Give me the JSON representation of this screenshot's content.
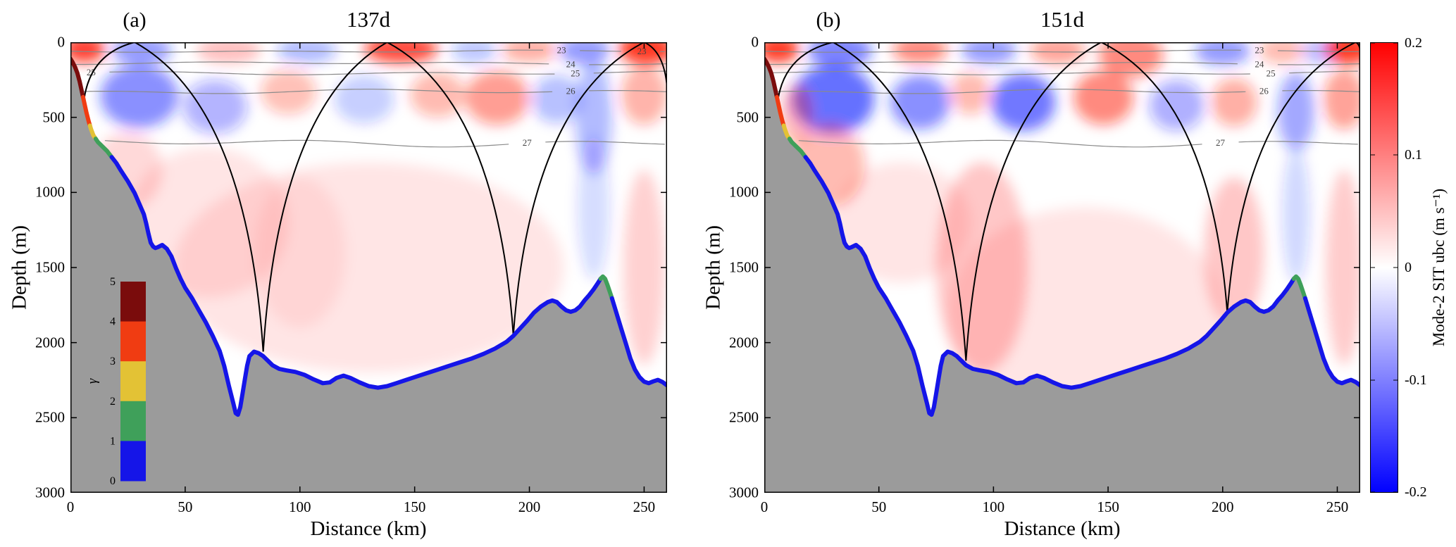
{
  "figure": {
    "background": "#ffffff",
    "field_colors": {
      "positive": "#ff1400",
      "negative": "#1122ff"
    },
    "bathymetry_fill": "#9b9b9b",
    "ray_color": "#000000",
    "contour_color": "#8a8a8a"
  },
  "colorbar": {
    "label": "Mode-2 SIT ubc (m s⁻¹)",
    "tick_labels": [
      "0.2",
      "0.1",
      "0",
      "-0.1",
      "-0.2"
    ],
    "tick_values": [
      0.2,
      0.1,
      0,
      -0.1,
      -0.2
    ],
    "min": -0.2,
    "max": 0.2,
    "colors_top_to_bottom": [
      "#ff0000",
      "#ffffff",
      "#0000ff"
    ]
  },
  "gamma_legend": {
    "label": "γ",
    "tick_labels": [
      "5",
      "4",
      "3",
      "2",
      "1",
      "0"
    ],
    "tick_values": [
      5,
      4,
      3,
      2,
      1,
      0
    ],
    "colors_top_to_bottom": [
      "#7a0c0c",
      "#f03c12",
      "#e3c235",
      "#3fa05a",
      "#1515e8"
    ]
  },
  "bathymetry": {
    "profile": [
      [
        0,
        110
      ],
      [
        1,
        135
      ],
      [
        2,
        165
      ],
      [
        3,
        205
      ],
      [
        4,
        260
      ],
      [
        5,
        330
      ],
      [
        6,
        400
      ],
      [
        7,
        470
      ],
      [
        8,
        530
      ],
      [
        9,
        580
      ],
      [
        10,
        620
      ],
      [
        12,
        665
      ],
      [
        14,
        695
      ],
      [
        16,
        725
      ],
      [
        18,
        765
      ],
      [
        20,
        805
      ],
      [
        22,
        855
      ],
      [
        25,
        925
      ],
      [
        28,
        1005
      ],
      [
        30,
        1075
      ],
      [
        32,
        1145
      ],
      [
        33,
        1205
      ],
      [
        34,
        1275
      ],
      [
        35,
        1335
      ],
      [
        36,
        1360
      ],
      [
        37,
        1370
      ],
      [
        38,
        1365
      ],
      [
        40,
        1350
      ],
      [
        42,
        1375
      ],
      [
        44,
        1425
      ],
      [
        46,
        1505
      ],
      [
        48,
        1575
      ],
      [
        50,
        1635
      ],
      [
        53,
        1705
      ],
      [
        56,
        1785
      ],
      [
        59,
        1865
      ],
      [
        62,
        1955
      ],
      [
        65,
        2055
      ],
      [
        67,
        2155
      ],
      [
        69,
        2285
      ],
      [
        71,
        2405
      ],
      [
        72,
        2470
      ],
      [
        73,
        2480
      ],
      [
        74,
        2430
      ],
      [
        75,
        2340
      ],
      [
        76,
        2245
      ],
      [
        77,
        2155
      ],
      [
        78,
        2090
      ],
      [
        80,
        2060
      ],
      [
        82,
        2070
      ],
      [
        84,
        2090
      ],
      [
        86,
        2120
      ],
      [
        88,
        2150
      ],
      [
        91,
        2175
      ],
      [
        94,
        2185
      ],
      [
        98,
        2195
      ],
      [
        102,
        2215
      ],
      [
        106,
        2245
      ],
      [
        110,
        2270
      ],
      [
        113,
        2265
      ],
      [
        116,
        2235
      ],
      [
        119,
        2220
      ],
      [
        122,
        2235
      ],
      [
        126,
        2265
      ],
      [
        130,
        2290
      ],
      [
        134,
        2300
      ],
      [
        138,
        2290
      ],
      [
        142,
        2270
      ],
      [
        146,
        2250
      ],
      [
        150,
        2230
      ],
      [
        155,
        2205
      ],
      [
        160,
        2180
      ],
      [
        165,
        2155
      ],
      [
        170,
        2130
      ],
      [
        175,
        2105
      ],
      [
        180,
        2075
      ],
      [
        185,
        2040
      ],
      [
        190,
        1995
      ],
      [
        193,
        1955
      ],
      [
        196,
        1905
      ],
      [
        199,
        1855
      ],
      [
        202,
        1800
      ],
      [
        205,
        1760
      ],
      [
        208,
        1730
      ],
      [
        210,
        1720
      ],
      [
        212,
        1730
      ],
      [
        214,
        1760
      ],
      [
        216,
        1785
      ],
      [
        218,
        1795
      ],
      [
        220,
        1785
      ],
      [
        222,
        1760
      ],
      [
        224,
        1720
      ],
      [
        226,
        1685
      ],
      [
        228,
        1645
      ],
      [
        230,
        1600
      ],
      [
        231,
        1575
      ],
      [
        232,
        1560
      ],
      [
        233,
        1575
      ],
      [
        234,
        1615
      ],
      [
        236,
        1705
      ],
      [
        238,
        1805
      ],
      [
        240,
        1905
      ],
      [
        242,
        2005
      ],
      [
        244,
        2105
      ],
      [
        246,
        2180
      ],
      [
        248,
        2230
      ],
      [
        250,
        2260
      ],
      [
        252,
        2270
      ],
      [
        254,
        2258
      ],
      [
        256,
        2248
      ],
      [
        258,
        2262
      ],
      [
        260,
        2285
      ]
    ],
    "boundary_segments": [
      {
        "from": 0,
        "to": 5.5,
        "gamma": "4-5",
        "color": "#7a0c0c"
      },
      {
        "from": 5.5,
        "to": 8.5,
        "gamma": "3-4",
        "color": "#f03c12"
      },
      {
        "from": 8.5,
        "to": 11,
        "gamma": "2-3",
        "color": "#e3c235"
      },
      {
        "from": 11,
        "to": 18,
        "gamma": "1-2",
        "color": "#3fa05a"
      },
      {
        "from": 18,
        "to": 231,
        "gamma": "0-1",
        "color": "#1515e8"
      },
      {
        "from": 231,
        "to": 236,
        "gamma": "1-2",
        "color": "#3fa05a"
      },
      {
        "from": 236,
        "to": 260,
        "gamma": "0-1",
        "color": "#1515e8"
      }
    ]
  },
  "chart_data": [
    {
      "type": "heatmap",
      "panel_label": "(a)",
      "title": "137d",
      "xlabel": "Distance (km)",
      "ylabel": "Depth (m)",
      "xlim": [
        0,
        260
      ],
      "ylim": [
        3000,
        0
      ],
      "xticks": [
        0,
        50,
        100,
        150,
        200,
        250
      ],
      "yticks": [
        0,
        500,
        1000,
        1500,
        2000,
        2500,
        3000
      ],
      "has_gamma_inset": true,
      "contours": [
        {
          "label": "23",
          "depth": 60,
          "amp": 8,
          "label_x": [
            214,
            249
          ]
        },
        {
          "label": "24",
          "depth": 140,
          "amp": 10,
          "label_x": [
            218
          ]
        },
        {
          "label": "25",
          "depth": 205,
          "amp": 13,
          "label_x": [
            9,
            220
          ]
        },
        {
          "label": "26",
          "depth": 330,
          "amp": 18,
          "label_x": [
            218
          ]
        },
        {
          "label": "27",
          "depth": 670,
          "amp": 28,
          "label_x": [
            199
          ]
        }
      ],
      "rays": [
        [
          [
            28,
            0
          ],
          [
            6,
            375
          ]
        ],
        [
          [
            28,
            0
          ],
          [
            84,
            2060
          ]
        ],
        [
          [
            138,
            0
          ],
          [
            84,
            2060
          ]
        ],
        [
          [
            138,
            0
          ],
          [
            193,
            1950
          ]
        ],
        [
          [
            250,
            0
          ],
          [
            193,
            1950
          ]
        ],
        [
          [
            250,
            0
          ],
          [
            260,
            300
          ]
        ]
      ],
      "field_blobs": [
        [
          6,
          45,
          9,
          90,
          "+",
          0.8
        ],
        [
          31,
          55,
          13,
          95,
          "-",
          0.45
        ],
        [
          69,
          55,
          14,
          85,
          "+",
          0.25
        ],
        [
          103,
          55,
          13,
          85,
          "-",
          0.3
        ],
        [
          144,
          45,
          16,
          95,
          "+",
          0.75
        ],
        [
          176,
          55,
          10,
          85,
          "-",
          0.25
        ],
        [
          200,
          50,
          12,
          85,
          "+",
          0.35
        ],
        [
          224,
          55,
          11,
          95,
          "-",
          0.45
        ],
        [
          251,
          45,
          12,
          100,
          "+",
          0.85
        ],
        [
          30,
          360,
          17,
          210,
          "-",
          0.5
        ],
        [
          63,
          430,
          14,
          180,
          "-",
          0.33
        ],
        [
          95,
          330,
          12,
          150,
          "+",
          0.28
        ],
        [
          128,
          380,
          13,
          160,
          "-",
          0.22
        ],
        [
          160,
          350,
          12,
          150,
          "+",
          0.3
        ],
        [
          186,
          370,
          14,
          180,
          "+",
          0.42
        ],
        [
          212,
          380,
          11,
          160,
          "-",
          0.28
        ],
        [
          228,
          500,
          8,
          380,
          "-",
          0.3
        ],
        [
          250,
          350,
          10,
          200,
          "+",
          0.33
        ],
        [
          25,
          850,
          15,
          260,
          "+",
          0.15
        ],
        [
          60,
          1200,
          35,
          500,
          "+",
          0.1
        ],
        [
          130,
          1500,
          85,
          700,
          "+",
          0.1
        ],
        [
          100,
          1400,
          20,
          500,
          "+",
          0.07
        ],
        [
          228,
          1100,
          7,
          480,
          "-",
          0.16
        ],
        [
          250,
          1500,
          9,
          650,
          "+",
          0.18
        ]
      ]
    },
    {
      "type": "heatmap",
      "panel_label": "(b)",
      "title": "151d",
      "xlabel": "Distance (km)",
      "ylabel": "Depth (m)",
      "xlim": [
        0,
        260
      ],
      "ylim": [
        3000,
        0
      ],
      "xticks": [
        0,
        50,
        100,
        150,
        200,
        250
      ],
      "yticks": [
        0,
        500,
        1000,
        1500,
        2000,
        2500,
        3000
      ],
      "has_gamma_inset": false,
      "contours": [
        {
          "label": "23",
          "depth": 60,
          "amp": 8,
          "label_x": [
            216
          ]
        },
        {
          "label": "24",
          "depth": 140,
          "amp": 10,
          "label_x": [
            216
          ]
        },
        {
          "label": "25",
          "depth": 205,
          "amp": 13,
          "label_x": [
            221
          ]
        },
        {
          "label": "26",
          "depth": 330,
          "amp": 18,
          "label_x": [
            218
          ]
        },
        {
          "label": "27",
          "depth": 670,
          "amp": 28,
          "label_x": [
            199
          ]
        }
      ],
      "rays": [
        [
          [
            30,
            0
          ],
          [
            6,
            380
          ]
        ],
        [
          [
            30,
            0
          ],
          [
            88,
            2120
          ]
        ],
        [
          [
            147,
            0
          ],
          [
            88,
            2120
          ]
        ],
        [
          [
            147,
            0
          ],
          [
            202,
            1800
          ]
        ],
        [
          [
            258,
            0
          ],
          [
            202,
            1800
          ]
        ],
        [
          [
            258,
            0
          ],
          [
            260,
            60
          ]
        ]
      ],
      "field_blobs": [
        [
          6,
          45,
          9,
          90,
          "+",
          0.85
        ],
        [
          33,
          60,
          14,
          110,
          "-",
          0.55
        ],
        [
          68,
          50,
          12,
          90,
          "+",
          0.5
        ],
        [
          98,
          55,
          12,
          90,
          "-",
          0.45
        ],
        [
          128,
          55,
          12,
          90,
          "+",
          0.4
        ],
        [
          160,
          85,
          14,
          150,
          "+",
          0.5
        ],
        [
          200,
          60,
          12,
          95,
          "-",
          0.45
        ],
        [
          226,
          55,
          10,
          90,
          "+",
          0.3
        ],
        [
          243,
          60,
          8,
          90,
          "-",
          0.3
        ],
        [
          255,
          45,
          10,
          100,
          "+",
          0.85
        ],
        [
          30,
          380,
          18,
          230,
          "-",
          0.65
        ],
        [
          14,
          480,
          7,
          200,
          "+",
          0.3
        ],
        [
          68,
          400,
          13,
          180,
          "-",
          0.5
        ],
        [
          90,
          340,
          9,
          140,
          "+",
          0.3
        ],
        [
          113,
          400,
          14,
          190,
          "-",
          0.6
        ],
        [
          148,
          370,
          13,
          180,
          "+",
          0.5
        ],
        [
          180,
          420,
          12,
          170,
          "-",
          0.35
        ],
        [
          205,
          400,
          10,
          160,
          "+",
          0.35
        ],
        [
          232,
          460,
          8,
          260,
          "-",
          0.4
        ],
        [
          253,
          380,
          9,
          200,
          "+",
          0.4
        ],
        [
          28,
          820,
          16,
          280,
          "+",
          0.3
        ],
        [
          95,
          1500,
          20,
          700,
          "+",
          0.22
        ],
        [
          205,
          1400,
          13,
          500,
          "+",
          0.22
        ],
        [
          140,
          1800,
          60,
          700,
          "+",
          0.1
        ],
        [
          232,
          1150,
          6,
          450,
          "-",
          0.18
        ],
        [
          253,
          1500,
          8,
          650,
          "+",
          0.2
        ],
        [
          60,
          1200,
          30,
          400,
          "+",
          0.1
        ]
      ]
    }
  ]
}
